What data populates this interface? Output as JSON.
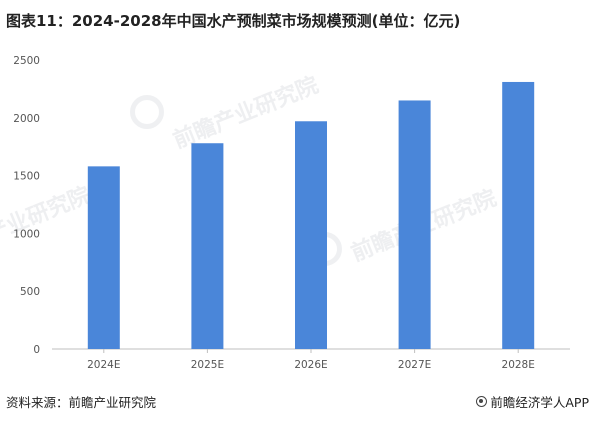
{
  "chart_data": {
    "type": "bar",
    "title": "图表11：2024-2028年中国水产预制菜市场规模预测(单位：亿元)",
    "categories": [
      "2024E",
      "2025E",
      "2026E",
      "2027E",
      "2028E"
    ],
    "values": [
      1580,
      1780,
      1970,
      2150,
      2310
    ],
    "ylim": [
      0,
      2500
    ],
    "yticks": [
      0,
      500,
      1000,
      1500,
      2000,
      2500
    ],
    "xlabel": "",
    "ylabel": "",
    "grid": false,
    "bar_color": "#4a86d9",
    "axis_color": "#bfbfbf"
  },
  "footer": {
    "source": "资料来源：前瞻产业研究院",
    "brand": "前瞻经济学人APP"
  },
  "watermark": {
    "text": "前瞻产业研究院"
  }
}
